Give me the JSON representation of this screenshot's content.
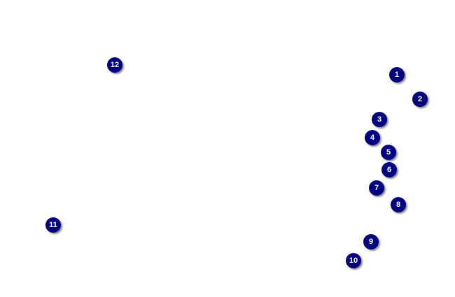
{
  "map": {
    "marker_color": "#00007f",
    "marker_text_color": "#ffffff",
    "markers": [
      {
        "label": "1"
      },
      {
        "label": "2"
      },
      {
        "label": "3"
      },
      {
        "label": "4"
      },
      {
        "label": "5"
      },
      {
        "label": "6"
      },
      {
        "label": "7"
      },
      {
        "label": "8"
      },
      {
        "label": "9"
      },
      {
        "label": "10"
      },
      {
        "label": "11"
      },
      {
        "label": "12"
      }
    ]
  }
}
